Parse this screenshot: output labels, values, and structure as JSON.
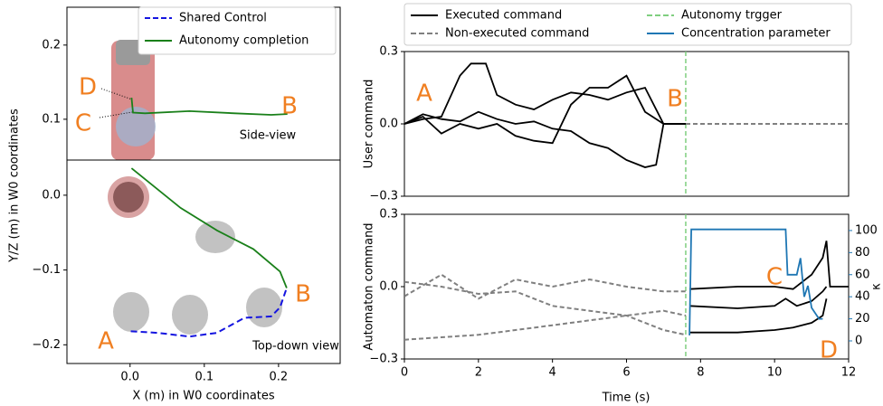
{
  "chart_data": [
    {
      "type": "line",
      "ylabel": "Y/Z (m) in W0 coordinates",
      "annotations": [
        "D",
        "C",
        "B",
        "Side-view"
      ],
      "xlim": [
        -0.085,
        0.283
      ],
      "ylim": [
        0.045,
        0.251
      ],
      "yticks": [
        0.1,
        0.2
      ],
      "series": [
        {
          "color": "#1a801a",
          "x": [
            0.002,
            0.004,
            0.02,
            0.08,
            0.141,
            0.19,
            0.212
          ],
          "values": [
            0.129,
            0.109,
            0.108,
            0.111,
            0.108,
            0.106,
            0.107
          ]
        }
      ]
    },
    {
      "type": "line",
      "xlabel": "X (m) in W0 coordinates",
      "annotations": [
        "B",
        "A",
        "Top-down view"
      ],
      "xlim": [
        -0.085,
        0.283
      ],
      "ylim": [
        -0.225,
        0.047
      ],
      "xticks": [
        {
          "value": 0,
          "label": "0.0"
        },
        0.1,
        0.2
      ],
      "yticks": [
        {
          "value": -0.2,
          "label": "−0.2"
        },
        {
          "value": -0.1,
          "label": "−0.1"
        },
        {
          "value": 0,
          "label": "0.0"
        }
      ],
      "series": [
        {
          "name": "Shared Control",
          "color": "#1515e0",
          "dash": true,
          "x": [
            0.001,
            0.037,
            0.08,
            0.117,
            0.154,
            0.19,
            0.202,
            0.211
          ],
          "values": [
            -0.182,
            -0.184,
            -0.189,
            -0.184,
            -0.164,
            -0.162,
            -0.15,
            -0.124
          ]
        },
        {
          "name": "Autonomy completion",
          "color": "#1a801a",
          "x": [
            0.002,
            0.068,
            0.117,
            0.166,
            0.202,
            0.211
          ],
          "values": [
            0.036,
            -0.017,
            -0.047,
            -0.072,
            -0.102,
            -0.124
          ]
        }
      ]
    },
    {
      "type": "line",
      "ylabel": "User command",
      "annotations": [
        "A",
        "B"
      ],
      "xlim": [
        0,
        12
      ],
      "ylim": [
        -0.3,
        0.3
      ],
      "yticks": [
        {
          "value": -0.3,
          "label": "−0.3"
        },
        {
          "value": 0,
          "label": "0.0"
        },
        0.3
      ],
      "trigger": {
        "name": "Autonomy trgger",
        "x": 7.6,
        "color": "#7fcf7f"
      },
      "series": [
        {
          "name": "Executed command",
          "color": "#000000",
          "x": [
            0,
            0.5,
            1,
            1.5,
            1.8,
            2.2,
            2.5,
            3,
            3.5,
            4,
            4.5,
            5,
            5.5,
            6,
            6.5,
            7,
            7.6
          ],
          "values": [
            0,
            0.02,
            0.03,
            0.2,
            0.25,
            0.25,
            0.12,
            0.08,
            0.06,
            0.1,
            0.13,
            0.12,
            0.1,
            0.13,
            0.15,
            0,
            0
          ]
        },
        {
          "color": "#000000",
          "x": [
            0,
            0.5,
            1,
            1.5,
            2,
            2.5,
            3,
            3.5,
            4,
            4.5,
            5,
            5.5,
            6,
            6.5,
            7,
            7.6
          ],
          "values": [
            0,
            0.03,
            -0.04,
            0,
            -0.02,
            0,
            -0.05,
            -0.07,
            -0.08,
            0.08,
            0.15,
            0.15,
            0.2,
            0.05,
            0,
            0
          ]
        },
        {
          "color": "#000000",
          "x": [
            0,
            0.5,
            1,
            1.5,
            2,
            2.5,
            3,
            3.5,
            4,
            4.5,
            5,
            5.5,
            6,
            6.5,
            6.8,
            7,
            7.6
          ],
          "values": [
            0,
            0.04,
            0.02,
            0.01,
            0.05,
            0.02,
            0,
            0.01,
            -0.02,
            -0.03,
            -0.08,
            -0.1,
            -0.15,
            -0.18,
            -0.17,
            0,
            0
          ]
        },
        {
          "name": "Non-executed command",
          "color": "#808080",
          "dash": true,
          "x": [
            7.6,
            12
          ],
          "values": [
            0,
            0
          ]
        }
      ]
    },
    {
      "type": "line",
      "ylabel": "Automaton command",
      "xlabel": "Time (s)",
      "y2label": "κ",
      "annotations": [
        "C",
        "D"
      ],
      "xlim": [
        0,
        12
      ],
      "ylim": [
        -0.3,
        0.3
      ],
      "y2lim": [
        -16.4,
        114.7
      ],
      "xticks": [
        0,
        2,
        4,
        6,
        8,
        10,
        12
      ],
      "yticks": [
        {
          "value": -0.3,
          "label": "−0.3"
        },
        {
          "value": 0,
          "label": "0.0"
        },
        0.3
      ],
      "y2ticks": [
        0,
        20,
        40,
        60,
        80,
        100
      ],
      "trigger": {
        "x": 7.6,
        "color": "#7fcf7f"
      },
      "series": [
        {
          "color": "#808080",
          "dash": true,
          "x": [
            0,
            1,
            2,
            3,
            4,
            5,
            6,
            7,
            7.6
          ],
          "values": [
            0.02,
            0,
            -0.03,
            -0.02,
            -0.08,
            -0.1,
            -0.12,
            -0.18,
            -0.2
          ]
        },
        {
          "color": "#808080",
          "dash": true,
          "x": [
            0,
            1,
            2,
            3,
            4,
            5,
            6,
            7,
            7.6
          ],
          "values": [
            -0.04,
            0.05,
            -0.05,
            0.03,
            0,
            0.03,
            0,
            -0.02,
            -0.02
          ]
        },
        {
          "color": "#808080",
          "dash": true,
          "x": [
            0,
            1,
            2,
            3,
            4,
            5,
            6,
            7,
            7.6
          ],
          "values": [
            -0.22,
            -0.21,
            -0.2,
            -0.18,
            -0.16,
            -0.14,
            -0.12,
            -0.1,
            -0.12
          ]
        },
        {
          "color": "#000000",
          "x": [
            7.7,
            9,
            10,
            10.5,
            11,
            11.3,
            11.4,
            11.5,
            12
          ],
          "values": [
            -0.01,
            0,
            0,
            -0.01,
            0.05,
            0.12,
            0.19,
            0,
            0
          ]
        },
        {
          "color": "#000000",
          "x": [
            7.7,
            9,
            10,
            10.3,
            10.6,
            11,
            11.3,
            11.4
          ],
          "values": [
            -0.08,
            -0.09,
            -0.08,
            -0.05,
            -0.08,
            -0.06,
            -0.02,
            0
          ]
        },
        {
          "color": "#000000",
          "x": [
            7.7,
            9,
            10,
            10.5,
            11,
            11.3,
            11.4
          ],
          "values": [
            -0.19,
            -0.19,
            -0.18,
            -0.17,
            -0.15,
            -0.12,
            -0.05
          ]
        },
        {
          "name": "Concentration parameter",
          "color": "#1f77b4",
          "axis": "y2",
          "x": [
            7.7,
            7.75,
            10.3,
            10.35,
            10.6,
            10.7,
            10.8,
            10.9,
            11,
            11.2,
            11.3
          ],
          "values": [
            5,
            101,
            101,
            60,
            60,
            75,
            40,
            50,
            30,
            20,
            20
          ]
        }
      ]
    }
  ]
}
